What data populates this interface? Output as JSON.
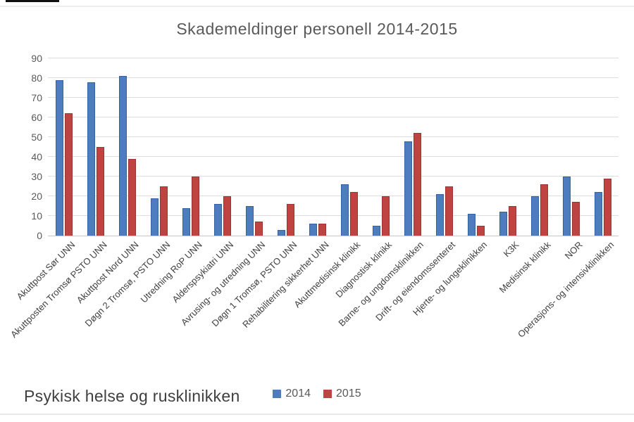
{
  "title": "Skademeldinger personell 2014-2015",
  "footer_label": "Psykisk helse og rusklinikken",
  "legend": {
    "items": [
      {
        "label": "2014",
        "color": "#4d7dbf"
      },
      {
        "label": "2015",
        "color": "#bf4340"
      }
    ]
  },
  "colors": {
    "series1_fill": "#4d7dbf",
    "series1_border": "#35619f",
    "series2_fill": "#bf4340",
    "series2_border": "#993431",
    "gridline": "#dedede",
    "axis_text": "#595959"
  },
  "chart_data": {
    "type": "bar",
    "title": "Skademeldinger personell 2014-2015",
    "categories": [
      "Akuttpost Sør UNN",
      "Akuttposten Tromsø PSTO UNN",
      "Akuttpost Nord UNN",
      "Døgn 2 Tromsø, PSTO UNN",
      "Utredning RoP UNN",
      "Alderspsykiatri UNN",
      "Avrusing- og utredning UNN",
      "Døgn 1 Tromsø, PSTO UNN",
      "Rehabilitering sikkerhet UNN",
      "Akuttmedisinsk klinikk",
      "Diagnostisk klinikk",
      "Barne- og ungdomsklinikken",
      "Drift- og eiendomssenteret",
      "Hjerte- og lungeklinikken",
      "K3K",
      "Medisinsk klinikk",
      "NOR",
      "Operasjons- og intensivklinikken"
    ],
    "series": [
      {
        "name": "2014",
        "color": "#4d7dbf",
        "border": "#35619f",
        "values": [
          79,
          78,
          81,
          19,
          14,
          16,
          15,
          3,
          6,
          26,
          5,
          48,
          21,
          11,
          12,
          20,
          30,
          22
        ]
      },
      {
        "name": "2015",
        "color": "#bf4340",
        "border": "#993431",
        "values": [
          62,
          45,
          39,
          25,
          30,
          20,
          7,
          16,
          6,
          22,
          20,
          52,
          25,
          5,
          15,
          26,
          17,
          29
        ]
      }
    ],
    "xlabel": "",
    "ylabel": "",
    "ylim": [
      0,
      90
    ],
    "yticks": [
      0,
      10,
      20,
      30,
      40,
      50,
      60,
      70,
      80,
      90
    ],
    "grid": true,
    "legend_position": "bottom"
  }
}
